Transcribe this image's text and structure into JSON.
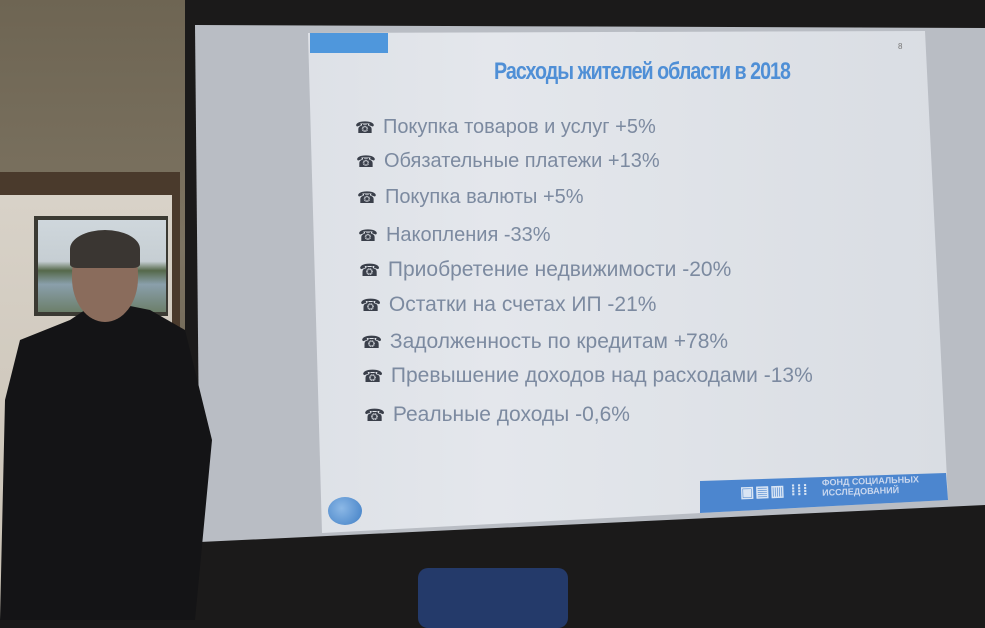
{
  "slide": {
    "title": "Расходы жителей области в 2018",
    "page_number": "8",
    "bullet_icon": "phone-icon",
    "bullet_glyph": "☎",
    "items": [
      "Покупка товаров и услуг +5%",
      "Обязательные платежи +13%",
      "Покупка валюты +5%",
      "Накопления -33%",
      "Приобретение недвижимости -20%",
      "Остатки на счетах ИП -21%",
      "Задолженность по кредитам +78%",
      "Превышение доходов над расходами -13%",
      "Реальные доходы -0,6%"
    ],
    "footer": {
      "logo": "ФСИ",
      "org_name_line1": "ФОНД СОЦИАЛЬНЫХ",
      "org_name_line2": "ИССЛЕДОВАНИЙ"
    },
    "colors": {
      "accent": "#4f8fd6",
      "footer": "#4c86cf",
      "text": "#7c8aa0"
    }
  }
}
